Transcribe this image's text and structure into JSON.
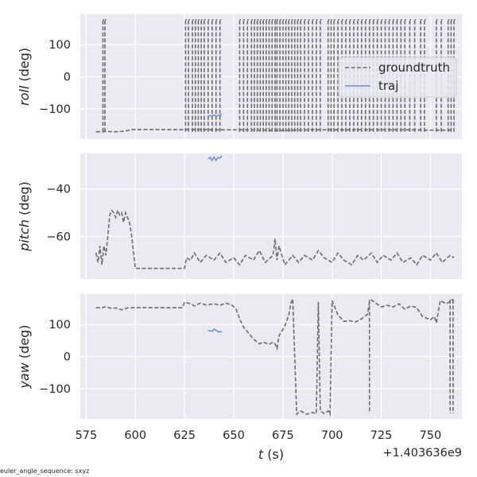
{
  "footnote": "euler_angle_sequence: sxyz",
  "colors": {
    "panel_bg": "#eaeaf2",
    "grid": "#ffffff",
    "groundtruth": "#6b6b6b",
    "traj": "#6a8fcb",
    "text": "#262626"
  },
  "chart_data": {
    "type": "line",
    "x_offset_label": "+1.403636e9",
    "xlabel_var": "t",
    "xlabel_unit": " (s)",
    "xlim": [
      572,
      766
    ],
    "xticks": [
      575,
      600,
      625,
      650,
      675,
      700,
      725,
      750
    ],
    "legend": {
      "placement": "right",
      "entries": [
        {
          "key": "groundtruth",
          "label": "groundtruth",
          "style": "dashed"
        },
        {
          "key": "traj",
          "label": "traj",
          "style": "solid"
        }
      ]
    },
    "subplots": [
      {
        "key": "roll",
        "ylabel_var": "roll",
        "ylabel_unit": " (deg)",
        "ylim": [
          -195,
          195
        ],
        "yticks": [
          -100,
          0,
          100
        ],
        "series": [
          {
            "name": "groundtruth",
            "wrap": true,
            "x": [
              580,
              583,
              584,
              585,
              590,
              595,
              598,
              610,
              625,
              640,
              655,
              665,
              670,
              675,
              680,
              690,
              700,
              710,
              720,
              730,
              740,
              750,
              755,
              760,
              762
            ],
            "y": [
              -172,
              -172,
              -172,
              -171,
              -172,
              -170,
              -165,
              -165,
              -165,
              -166,
              -166,
              -167,
              -168,
              -168,
              -167,
              -166,
              -166,
              -166,
              -166,
              -166,
              -166,
              -167,
              -167,
              -167,
              -168
            ]
          },
          {
            "name": "traj",
            "x": [
              637,
              638,
              639,
              640,
              641,
              642,
              643,
              644
            ],
            "y": [
              -124,
              -121,
              -124,
              -119,
              -125,
              -120,
              -122,
              -117
            ]
          }
        ]
      },
      {
        "key": "pitch",
        "ylabel_var": "pitch",
        "ylabel_unit": " (deg)",
        "ylim": [
          -78,
          -25
        ],
        "yticks": [
          -60,
          -40
        ],
        "series": [
          {
            "name": "groundtruth",
            "x": [
              580,
              581,
              582,
              583,
              584,
              585,
              586,
              587,
              588,
              589,
              590,
              591,
              592,
              593,
              594,
              595,
              596,
              597,
              598,
              600,
              610,
              625,
              626,
              628,
              630,
              633,
              636,
              640,
              643,
              646,
              650,
              653,
              656,
              660,
              663,
              666,
              670,
              671,
              672,
              673,
              676,
              680,
              683,
              686,
              690,
              693,
              696,
              700,
              703,
              706,
              710,
              713,
              716,
              720,
              723,
              726,
              730,
              733,
              736,
              740,
              743,
              746,
              750,
              753,
              756,
              760,
              762
            ],
            "y": [
              -67,
              -71,
              -64,
              -72,
              -64,
              -68,
              -60,
              -51,
              -49,
              -50,
              -52,
              -49,
              -51,
              -50,
              -54,
              -50,
              -52,
              -54,
              -59,
              -73.5,
              -73.5,
              -73.5,
              -69,
              -70,
              -67,
              -71,
              -68,
              -70,
              -67,
              -71,
              -69,
              -72,
              -68,
              -70,
              -66,
              -71,
              -68,
              -61,
              -70,
              -64,
              -72,
              -68,
              -71,
              -68,
              -70,
              -66,
              -69,
              -71,
              -67,
              -70,
              -72,
              -68,
              -70,
              -67,
              -71,
              -68,
              -70,
              -67,
              -71,
              -69,
              -72,
              -68,
              -70,
              -67,
              -71,
              -68,
              -69
            ]
          },
          {
            "name": "traj",
            "x": [
              637,
              638,
              639,
              640,
              641,
              642,
              643,
              644
            ],
            "y": [
              -27.5,
              -26.5,
              -28,
              -26.5,
              -28,
              -26.6,
              -27,
              -26
            ]
          }
        ]
      },
      {
        "key": "yaw",
        "ylabel_var": "yaw",
        "ylabel_unit": " (deg)",
        "ylim": [
          -195,
          195
        ],
        "yticks": [
          -100,
          0,
          100
        ],
        "series": [
          {
            "name": "groundtruth",
            "x": [
              580,
              583,
              585,
              588,
              590,
              593,
              596,
              600,
              610,
              624,
              625,
              628,
              630,
              633,
              636,
              640,
              643,
              646,
              649,
              651,
              653,
              655,
              658,
              660,
              663,
              665,
              668,
              670,
              671,
              672,
              673,
              676,
              678,
              679,
              680,
              682,
              684,
              687,
              690,
              692,
              693,
              694,
              696,
              698,
              699,
              700,
              703,
              706,
              709,
              712,
              715,
              718,
              719,
              720,
              722,
              725,
              728,
              731,
              734,
              737,
              740,
              743,
              746,
              748,
              750,
              752,
              753,
              755,
              758,
              760,
              761,
              762
            ],
            "y": [
              153,
              152,
              156,
              150,
              152,
              146,
              152,
              153,
              153,
              153,
              170,
              165,
              158,
              167,
              161,
              165,
              160,
              167,
              161,
              150,
              118,
              92,
              70,
              55,
              40,
              45,
              38,
              45,
              40,
              25,
              65,
              95,
              130,
              165,
              180,
              -180,
              -170,
              -180,
              -175,
              -178,
              170,
              -170,
              -178,
              -170,
              -180,
              175,
              130,
              110,
              112,
              108,
              118,
              132,
              170,
              177,
              168,
              155,
              160,
              155,
              165,
              148,
              158,
              153,
              125,
              120,
              115,
              125,
              105,
              175,
              165,
              172,
              178,
              176
            ]
          },
          {
            "name": "traj",
            "x": [
              637,
              638,
              639,
              640,
              641,
              642,
              643,
              644
            ],
            "y": [
              80,
              81,
              79,
              86,
              82,
              78,
              77,
              78
            ]
          }
        ]
      }
    ]
  }
}
